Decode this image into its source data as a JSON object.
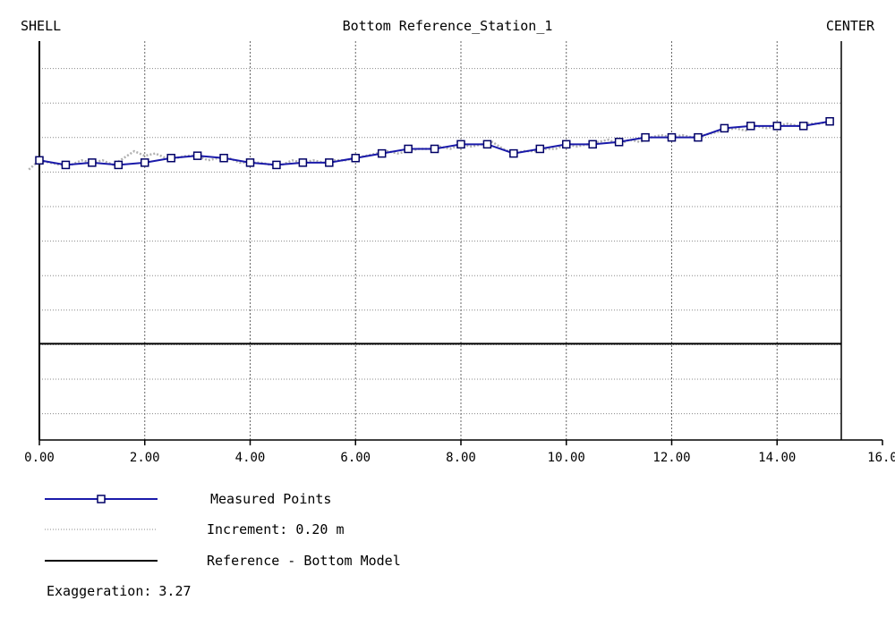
{
  "header": {
    "left_label": "SHELL",
    "right_label": "CENTER"
  },
  "chart_data": {
    "type": "line",
    "title": "Bottom Reference_Station_1",
    "xlim": [
      0,
      16
    ],
    "x_tick_labels": [
      "0.00",
      "2.00",
      "4.00",
      "6.00",
      "8.00",
      "10.00",
      "12.00",
      "14.00",
      "16.0"
    ],
    "grid": true,
    "series": [
      {
        "name": "Measured Points",
        "color": "#1a1aaa",
        "marker": "square",
        "x": [
          0.0,
          0.5,
          1.0,
          1.5,
          2.0,
          2.5,
          3.0,
          3.5,
          4.0,
          4.5,
          5.0,
          5.5,
          6.0,
          6.5,
          7.0,
          7.5,
          8.0,
          8.5,
          9.0,
          9.5,
          10.0,
          10.5,
          11.0,
          11.5,
          12.0,
          12.5,
          13.0,
          13.5,
          14.0,
          14.5,
          15.0
        ],
        "y": [
          0.0,
          -0.02,
          -0.01,
          -0.02,
          -0.01,
          0.01,
          0.02,
          0.01,
          -0.01,
          -0.02,
          -0.01,
          -0.01,
          0.01,
          0.03,
          0.05,
          0.05,
          0.07,
          0.07,
          0.03,
          0.05,
          0.07,
          0.07,
          0.08,
          0.1,
          0.1,
          0.1,
          0.14,
          0.15,
          0.15,
          0.15,
          0.17
        ]
      },
      {
        "name": "Increment: 0.20 m",
        "color": "#b0b0b0",
        "style": "dotted",
        "x": [
          -0.2,
          0.0,
          0.2,
          0.4,
          0.6,
          0.8,
          1.0,
          1.2,
          1.4,
          1.6,
          1.8,
          2.0,
          2.2,
          2.4,
          2.6,
          2.8,
          3.0,
          3.2,
          3.4,
          3.6,
          3.8,
          4.0,
          4.2,
          4.4,
          4.6,
          4.8,
          5.0,
          5.2,
          5.4,
          5.6,
          5.8,
          6.0,
          6.2,
          6.4,
          6.6,
          6.8,
          7.0,
          7.2,
          7.4,
          7.6,
          7.8,
          8.0,
          8.2,
          8.4,
          8.6,
          8.8,
          9.0,
          9.2,
          9.4,
          9.6,
          9.8,
          10.0,
          10.2,
          10.4,
          10.6,
          10.8,
          11.0,
          11.2,
          11.4,
          11.6,
          11.8,
          12.0,
          12.2,
          12.4,
          12.6,
          12.8,
          13.0,
          13.2,
          13.4,
          13.6,
          13.8,
          14.0,
          14.2,
          14.4,
          14.6,
          14.8,
          15.0
        ],
        "y": [
          -0.04,
          0.0,
          -0.01,
          -0.02,
          -0.02,
          0.0,
          -0.01,
          0.0,
          -0.02,
          0.01,
          0.04,
          0.02,
          0.03,
          0.01,
          0.01,
          0.02,
          0.02,
          0.0,
          0.01,
          0.01,
          -0.01,
          -0.01,
          -0.01,
          -0.02,
          -0.02,
          0.0,
          -0.01,
          0.0,
          -0.01,
          0.0,
          0.0,
          0.01,
          0.02,
          0.03,
          0.04,
          0.03,
          0.04,
          0.05,
          0.05,
          0.06,
          0.05,
          0.07,
          0.06,
          0.07,
          0.08,
          0.05,
          0.03,
          0.04,
          0.04,
          0.05,
          0.05,
          0.07,
          0.06,
          0.07,
          0.08,
          0.09,
          0.07,
          0.09,
          0.08,
          0.1,
          0.11,
          0.1,
          0.11,
          0.1,
          0.11,
          0.12,
          0.13,
          0.14,
          0.13,
          0.15,
          0.14,
          0.15,
          0.16,
          0.15,
          0.16,
          0.16,
          0.17
        ]
      },
      {
        "name": "Reference - Bottom Model",
        "color": "#000000",
        "x": [
          0,
          15.2
        ],
        "y": [
          -0.8,
          -0.8
        ]
      }
    ],
    "ylim": [
      -1.22,
      0.52
    ]
  },
  "legend": [
    {
      "label": "Measured Points",
      "key": "measured"
    },
    {
      "label": "Increment: 0.20 m",
      "key": "increment"
    },
    {
      "label": "Reference - Bottom Model",
      "key": "reference"
    }
  ],
  "footer": {
    "exaggeration_label": "Exaggeration:",
    "exaggeration_value": "3.27"
  }
}
